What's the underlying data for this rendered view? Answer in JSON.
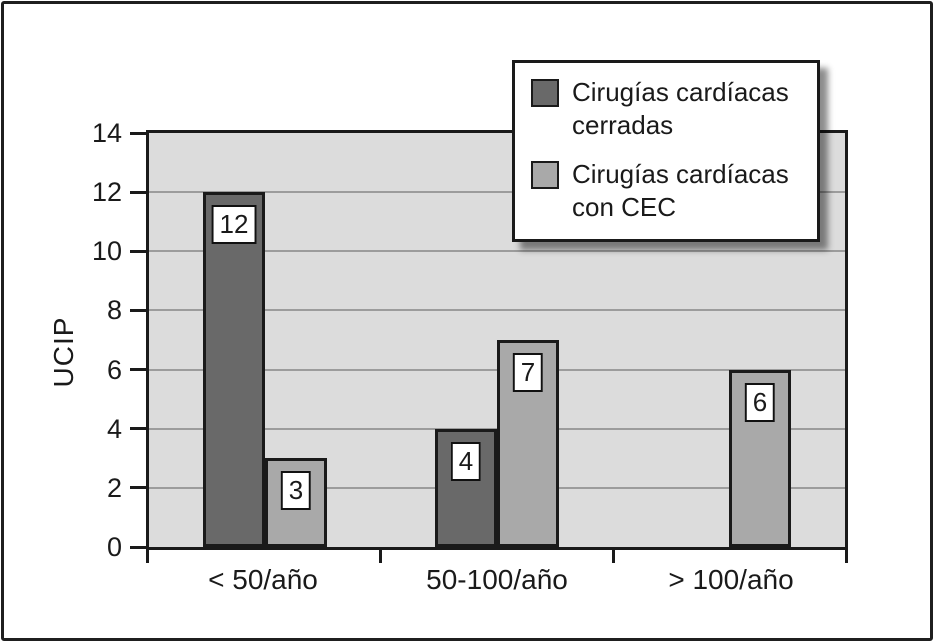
{
  "figure": {
    "background": "#ffffff",
    "frame_color": "#1f1f1f"
  },
  "chart_data": {
    "type": "bar",
    "title": "",
    "xlabel": "",
    "ylabel": "UCIP",
    "categories": [
      "< 50/año",
      "50-100/año",
      "> 100/año"
    ],
    "series": [
      {
        "name": "Cirugías cardíacas cerradas",
        "color": "#696969",
        "values": [
          12,
          4,
          null
        ]
      },
      {
        "name": "Cirugías cardíacas con CEC",
        "color": "#a9a9a9",
        "values": [
          3,
          7,
          6
        ]
      }
    ],
    "ylim": [
      0,
      14
    ],
    "yticks": [
      0,
      2,
      4,
      6,
      8,
      10,
      12,
      14
    ],
    "grid": "horizontal",
    "gridline_color": "#9c9c9c",
    "plot_background": "#dcdcdc",
    "bar_value_label_style": "white box with black border on each bar",
    "legend_position": "top-right"
  }
}
